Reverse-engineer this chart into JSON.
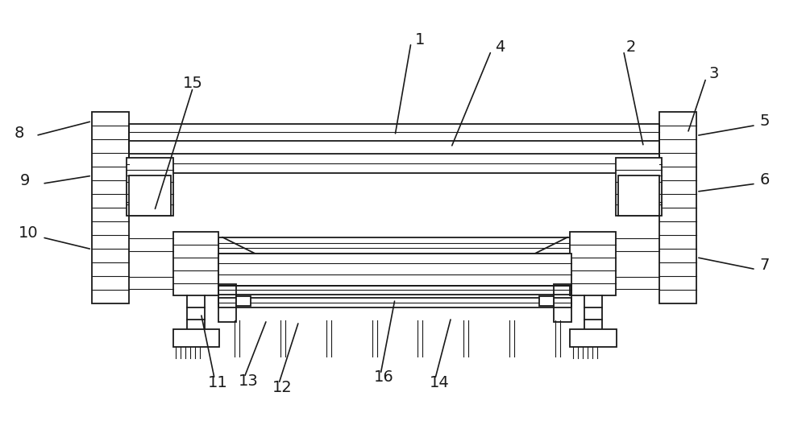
{
  "bg_color": "#ffffff",
  "line_color": "#1a1a1a",
  "lw": 1.3,
  "lw_thin": 0.8,
  "fig_width": 10.0,
  "fig_height": 5.28,
  "dpi": 100
}
